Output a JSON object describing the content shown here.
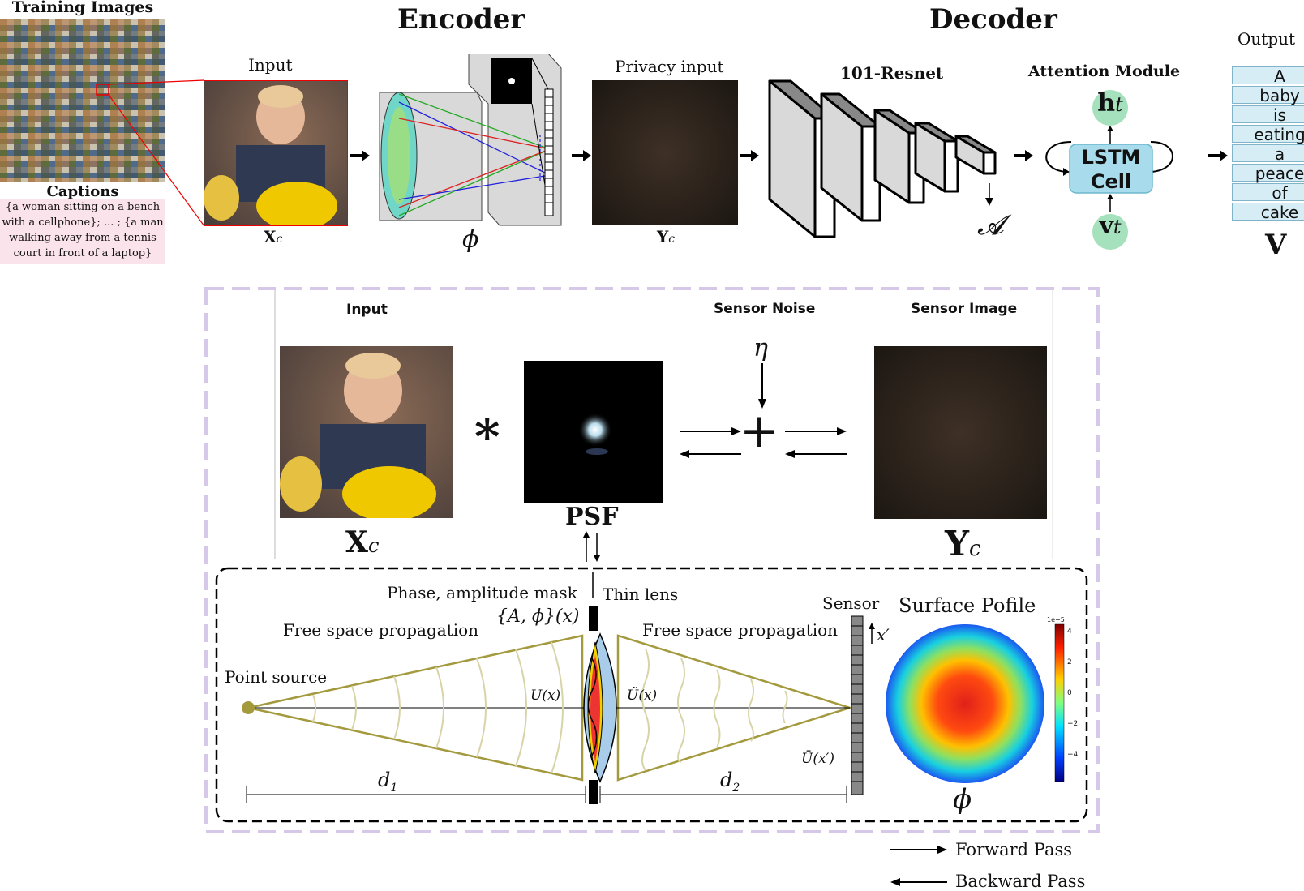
{
  "top": {
    "training_images_label": "Training Images",
    "captions_label": "Captions",
    "captions_text": "{a woman sitting on a bench with a cellphone}; ... ; {a man walking away from a tennis court in front of a laptop}",
    "encoder_title": "Encoder",
    "decoder_title": "Decoder",
    "input_label": "Input",
    "input_symbol": "X",
    "input_sub": "c",
    "phi_symbol": "ϕ",
    "privacy_input_label": "Privacy input",
    "privacy_symbol": "Y",
    "privacy_sub": "c",
    "resnet_label": "101-Resnet",
    "attention_label": "Attention Module",
    "lstm_line1": "LSTM",
    "lstm_line2": "Cell",
    "h_symbol": "h",
    "h_sub": "t",
    "v_symbol": "v",
    "v_sub": "t",
    "A_symbol": "𝓐",
    "output_label": "Output",
    "output_words": [
      "A",
      "baby",
      "is",
      "eating",
      "a",
      "peace",
      "of",
      "cake"
    ],
    "output_symbol": "V"
  },
  "bottom": {
    "input_label": "Input",
    "sensor_noise_label": "Sensor Noise",
    "sensor_image_label": "Sensor Image",
    "eta_symbol": "η",
    "convolution_symbol": "∗",
    "psf_label": "PSF",
    "plus_symbol": "+",
    "x_symbol": "X",
    "x_sub": "c",
    "y_symbol": "Y",
    "y_sub": "c",
    "mask_label": "Phase, amplitude mask",
    "mask_formula": "{A, ϕ}(x)",
    "thin_lens_label": "Thin lens",
    "sensor_label": "Sensor",
    "surface_profile_label": "Surface Pofile",
    "free_space_left": "Free space propagation",
    "free_space_right": "Free space propagation",
    "point_source_label": "Point source",
    "u_label": "U(x)",
    "u_tilde_label": "Ũ(x)",
    "u_bar_label": "Ū(x′)",
    "x_prime_label": "x′",
    "d1_label": "d",
    "d1_sub": "1",
    "d2_label": "d",
    "d2_sub": "2",
    "phi_symbol": "ϕ",
    "colorbar_scale": "1e−5",
    "colorbar_ticks": [
      "4",
      "2",
      "0",
      "−2",
      "−4"
    ]
  },
  "legend": {
    "forward_pass": "Forward Pass",
    "backward_pass": "Backward Pass"
  },
  "colors": {
    "lens_yellow": "#a39a3e",
    "lstm_fill": "#a8dced",
    "node_green": "#a6e1bd",
    "dashed_purple": "#d6c8e8",
    "caption_pink": "#fbe3ec",
    "word_box": "#d6edf5"
  }
}
